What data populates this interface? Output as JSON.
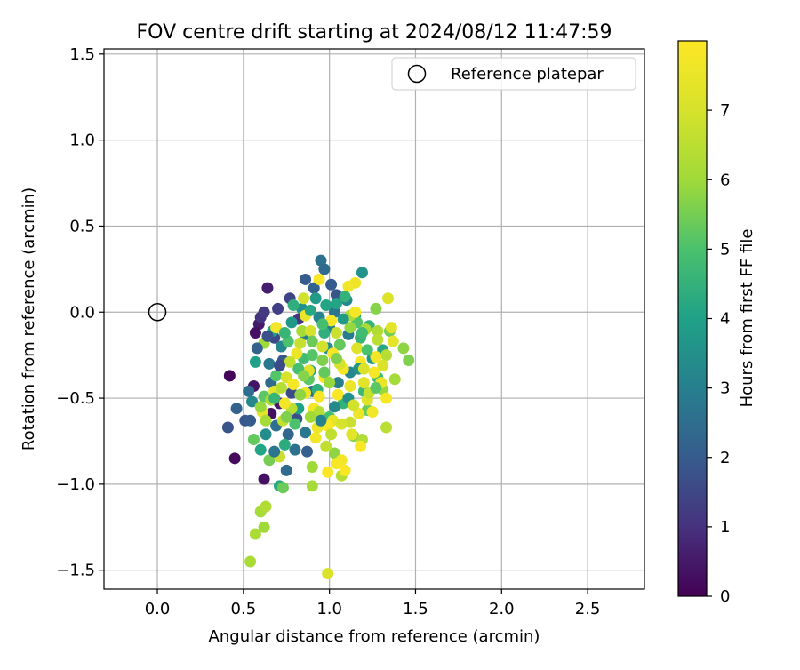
{
  "chart_data": {
    "type": "scatter",
    "title": "FOV centre drift starting at 2024/08/12 11:47:59",
    "xlabel": "Angular distance from reference (arcmin)",
    "ylabel": "Rotation from reference (arcmin)",
    "xlim": [
      -0.31,
      2.83
    ],
    "ylim": [
      -1.61,
      1.53
    ],
    "xticks": [
      0.0,
      0.5,
      1.0,
      1.5,
      2.0,
      2.5
    ],
    "xtick_labels": [
      "0.0",
      "0.5",
      "1.0",
      "1.5",
      "2.0",
      "2.5"
    ],
    "yticks": [
      -1.5,
      -1.0,
      -0.5,
      0.0,
      0.5,
      1.0,
      1.5
    ],
    "ytick_labels": [
      "−1.5",
      "−1.0",
      "−0.5",
      "0.0",
      "0.5",
      "1.0",
      "1.5"
    ],
    "grid": true,
    "legend": {
      "position": "top-right",
      "entries": [
        "Reference platepar"
      ]
    },
    "reference_point": {
      "x": 0.0,
      "y": 0.0
    },
    "colorbar": {
      "label": "Hours from first FF file",
      "range": [
        0,
        8
      ],
      "ticks": [
        0,
        1,
        2,
        3,
        4,
        5,
        6,
        7
      ],
      "tick_labels": [
        "0",
        "1",
        "2",
        "3",
        "4",
        "5",
        "6",
        "7"
      ],
      "colormap": "viridis"
    },
    "series": [
      {
        "points": [
          [
            0.42,
            -0.37,
            0.1
          ],
          [
            0.45,
            -0.85,
            0.2
          ],
          [
            0.62,
            -0.97,
            0.3
          ],
          [
            0.59,
            -0.07,
            0.5
          ],
          [
            0.57,
            -0.12,
            0.3
          ],
          [
            0.64,
            0.14,
            0.6
          ],
          [
            0.56,
            -0.43,
            0.4
          ],
          [
            0.66,
            -0.59,
            0.3
          ],
          [
            0.71,
            -0.53,
            0.5
          ],
          [
            0.6,
            -0.03,
            1.0
          ],
          [
            0.62,
            0.0,
            1.2
          ],
          [
            0.41,
            -0.67,
            1.8
          ],
          [
            0.46,
            -0.56,
            2.2
          ],
          [
            0.51,
            -0.63,
            1.9
          ],
          [
            0.68,
            -0.15,
            1.5
          ],
          [
            0.7,
            0.02,
            1.3
          ],
          [
            0.77,
            0.08,
            1.4
          ],
          [
            0.82,
            -0.04,
            1.1
          ],
          [
            0.86,
            0.19,
            2.0
          ],
          [
            0.91,
            0.14,
            2.2
          ],
          [
            0.95,
            0.3,
            2.6
          ],
          [
            0.97,
            0.25,
            2.4
          ],
          [
            1.01,
            0.16,
            2.0
          ],
          [
            1.04,
            0.1,
            1.8
          ],
          [
            0.73,
            -0.28,
            1.9
          ],
          [
            0.66,
            -0.41,
            2.4
          ],
          [
            0.78,
            -0.47,
            1.6
          ],
          [
            0.81,
            -0.62,
            1.7
          ],
          [
            0.87,
            -0.81,
            2.1
          ],
          [
            0.76,
            -0.71,
            2.3
          ],
          [
            0.69,
            -0.66,
            2.6
          ],
          [
            0.9,
            -0.46,
            2.5
          ],
          [
            1.03,
            0.0,
            2.7
          ],
          [
            1.11,
            -0.13,
            2.9
          ],
          [
            1.0,
            -0.09,
            3.0
          ],
          [
            0.94,
            -0.03,
            3.1
          ],
          [
            0.72,
            -0.2,
            3.2
          ],
          [
            0.65,
            -0.3,
            2.8
          ],
          [
            0.55,
            -0.52,
            3.3
          ],
          [
            0.63,
            -0.71,
            3.4
          ],
          [
            0.84,
            0.02,
            3.5
          ],
          [
            1.1,
            0.07,
            3.3
          ],
          [
            1.19,
            0.23,
            3.6
          ],
          [
            1.12,
            -0.35,
            3.2
          ],
          [
            1.25,
            -0.27,
            3.7
          ],
          [
            1.05,
            -0.41,
            3.0
          ],
          [
            0.99,
            -0.21,
            3.4
          ],
          [
            0.86,
            -0.13,
            2.9
          ],
          [
            0.78,
            -0.06,
            3.7
          ],
          [
            0.92,
            0.08,
            3.8
          ],
          [
            0.67,
            -0.11,
            3.9
          ],
          [
            0.57,
            -0.29,
            4.0
          ],
          [
            0.6,
            -0.8,
            4.1
          ],
          [
            0.71,
            -1.01,
            4.2
          ],
          [
            0.74,
            -0.77,
            4.3
          ],
          [
            0.82,
            -0.56,
            4.0
          ],
          [
            0.89,
            -0.34,
            3.9
          ],
          [
            0.97,
            -0.12,
            4.4
          ],
          [
            1.04,
            0.05,
            4.1
          ],
          [
            1.15,
            -0.02,
            4.3
          ],
          [
            1.18,
            -0.15,
            4.6
          ],
          [
            1.23,
            -0.08,
            4.5
          ],
          [
            1.31,
            -0.22,
            4.2
          ],
          [
            1.28,
            -0.38,
            4.8
          ],
          [
            1.2,
            -0.46,
            4.7
          ],
          [
            1.08,
            -0.53,
            4.5
          ],
          [
            1.0,
            -0.61,
            4.9
          ],
          [
            0.93,
            -0.45,
            4.4
          ],
          [
            0.85,
            -0.27,
            4.8
          ],
          [
            0.76,
            -0.17,
            5.0
          ],
          [
            0.69,
            -0.37,
            5.1
          ],
          [
            0.62,
            -0.49,
            5.2
          ],
          [
            0.56,
            -0.74,
            5.3
          ],
          [
            0.65,
            -0.86,
            5.5
          ],
          [
            0.73,
            -1.02,
            5.4
          ],
          [
            0.8,
            -0.65,
            5.0
          ],
          [
            0.88,
            -0.39,
            5.2
          ],
          [
            0.96,
            -0.28,
            5.6
          ],
          [
            1.06,
            -0.19,
            5.3
          ],
          [
            1.16,
            -0.06,
            5.1
          ],
          [
            1.27,
            0.02,
            5.7
          ],
          [
            1.35,
            -0.11,
            5.5
          ],
          [
            1.43,
            -0.21,
            5.8
          ],
          [
            1.46,
            -0.28,
            5.6
          ],
          [
            1.31,
            -0.45,
            5.9
          ],
          [
            1.22,
            -0.57,
            5.4
          ],
          [
            1.14,
            -0.72,
            5.7
          ],
          [
            1.03,
            -0.82,
            5.8
          ],
          [
            0.9,
            -0.9,
            6.0
          ],
          [
            0.9,
            -1.01,
            6.1
          ],
          [
            0.57,
            -1.29,
            6.2
          ],
          [
            0.6,
            -1.16,
            6.1
          ],
          [
            0.63,
            -1.13,
            6.3
          ],
          [
            0.62,
            -1.25,
            6.0
          ],
          [
            0.54,
            -1.45,
            6.2
          ],
          [
            0.62,
            -0.18,
            6.0
          ],
          [
            0.84,
            -0.11,
            6.1
          ],
          [
            1.12,
            -0.02,
            6.2
          ],
          [
            1.28,
            -0.11,
            6.3
          ],
          [
            1.33,
            -0.25,
            6.4
          ],
          [
            1.38,
            -0.39,
            6.1
          ],
          [
            1.33,
            -0.67,
            6.5
          ],
          [
            1.19,
            -0.74,
            6.3
          ],
          [
            1.07,
            -0.95,
            6.4
          ],
          [
            0.98,
            -0.78,
            6.6
          ],
          [
            0.78,
            -0.56,
            6.5
          ],
          [
            0.73,
            -0.63,
            6.7
          ],
          [
            0.71,
            -0.84,
            6.8
          ],
          [
            0.85,
            0.08,
            6.9
          ],
          [
            1.04,
            -0.12,
            6.8
          ],
          [
            0.99,
            -1.52,
            7.1
          ],
          [
            1.34,
            0.08,
            7.2
          ],
          [
            1.36,
            -0.09,
            7.3
          ],
          [
            1.37,
            -0.17,
            7.4
          ],
          [
            1.31,
            -0.31,
            7.1
          ],
          [
            1.3,
            -0.41,
            7.5
          ],
          [
            1.22,
            -0.51,
            7.2
          ],
          [
            1.17,
            -0.59,
            7.6
          ],
          [
            1.13,
            -0.71,
            7.3
          ],
          [
            1.07,
            -0.86,
            7.7
          ],
          [
            1.02,
            -0.63,
            7.4
          ],
          [
            0.94,
            -0.49,
            7.8
          ],
          [
            0.88,
            -0.34,
            7.2
          ],
          [
            0.81,
            -0.24,
            7.6
          ],
          [
            0.75,
            -0.38,
            7.1
          ],
          [
            0.68,
            -0.46,
            7.4
          ],
          [
            0.61,
            -0.58,
            7.3
          ],
          [
            0.69,
            -0.09,
            7.7
          ],
          [
            0.86,
            -0.02,
            7.5
          ],
          [
            1.01,
            -0.05,
            7.9
          ],
          [
            1.15,
            0.0,
            7.8
          ],
          [
            1.15,
            0.17,
            7.6
          ],
          [
            1.11,
            0.15,
            7.7
          ],
          [
            1.02,
            -0.24,
            7.9
          ],
          [
            1.08,
            -0.33,
            7.8
          ],
          [
            1.18,
            -0.29,
            7.9
          ],
          [
            1.26,
            -0.35,
            7.8
          ],
          [
            1.33,
            -0.5,
            7.9
          ],
          [
            1.25,
            -0.58,
            7.7
          ],
          [
            1.18,
            -0.78,
            7.9
          ],
          [
            1.09,
            -0.92,
            7.9
          ],
          [
            1.04,
            -0.88,
            7.8
          ],
          [
            0.99,
            -0.93,
            7.9
          ],
          [
            0.93,
            -0.67,
            7.6
          ],
          [
            0.91,
            -0.56,
            7.8
          ],
          [
            0.97,
            -0.38,
            7.9
          ],
          [
            0.94,
            0.19,
            7.9
          ],
          [
            0.99,
            -0.66,
            7.9
          ],
          [
            0.92,
            -0.73,
            7.7
          ],
          [
            0.79,
            -0.42,
            7.8
          ],
          [
            0.86,
            -0.47,
            7.6
          ],
          [
            0.74,
            -0.53,
            7.7
          ],
          [
            1.05,
            -0.48,
            7.9
          ],
          [
            1.12,
            -0.43,
            7.5
          ],
          [
            1.2,
            -0.41,
            7.3
          ],
          [
            1.27,
            -0.26,
            7.7
          ],
          [
            1.16,
            -0.21,
            7.2
          ],
          [
            1.06,
            -0.3,
            7.0
          ],
          [
            0.96,
            -0.2,
            6.9
          ],
          [
            0.89,
            -0.11,
            7.0
          ],
          [
            0.83,
            -0.18,
            6.7
          ],
          [
            0.77,
            -0.29,
            6.6
          ],
          [
            0.72,
            -0.44,
            6.4
          ],
          [
            0.66,
            -0.51,
            6.2
          ],
          [
            0.63,
            -0.63,
            6.1
          ],
          [
            0.6,
            -0.55,
            5.9
          ],
          [
            0.94,
            -0.58,
            6.4
          ],
          [
            1.01,
            -0.71,
            6.6
          ],
          [
            1.12,
            -0.64,
            6.8
          ],
          [
            1.23,
            -0.47,
            6.7
          ],
          [
            1.28,
            -0.16,
            6.5
          ],
          [
            1.21,
            -0.1,
            6.2
          ],
          [
            1.12,
            -0.09,
            5.9
          ],
          [
            1.04,
            -0.27,
            5.6
          ],
          [
            0.97,
            -0.35,
            5.3
          ],
          [
            0.9,
            -0.25,
            5.1
          ],
          [
            0.82,
            -0.33,
            4.9
          ],
          [
            0.74,
            -0.12,
            4.6
          ],
          [
            0.79,
            0.04,
            4.4
          ],
          [
            0.89,
            0.01,
            4.2
          ],
          [
            0.98,
            0.04,
            4.1
          ],
          [
            1.08,
            -0.04,
            3.8
          ],
          [
            1.17,
            -0.33,
            3.6
          ],
          [
            1.11,
            -0.5,
            3.5
          ],
          [
            1.03,
            -0.55,
            3.3
          ],
          [
            0.95,
            -0.63,
            3.1
          ],
          [
            0.86,
            -0.7,
            2.8
          ],
          [
            0.8,
            -0.8,
            2.6
          ],
          [
            0.75,
            -0.92,
            2.4
          ],
          [
            0.68,
            -0.81,
            2.7
          ],
          [
            0.54,
            -0.63,
            2.0
          ],
          [
            0.53,
            -0.46,
            2.5
          ],
          [
            0.58,
            -0.21,
            2.2
          ],
          [
            0.64,
            -0.14,
            1.7
          ],
          [
            0.71,
            -0.31,
            1.6
          ],
          [
            0.68,
            -0.5,
            4.6
          ],
          [
            0.75,
            -0.61,
            5.6
          ],
          [
            0.83,
            -0.48,
            5.8
          ],
          [
            0.89,
            -0.61,
            6.0
          ],
          [
            1.0,
            -0.41,
            5.9
          ],
          [
            1.07,
            -0.65,
            7.0
          ],
          [
            1.14,
            -0.54,
            6.9
          ],
          [
            1.2,
            -0.33,
            7.1
          ],
          [
            1.27,
            -0.44,
            5.2
          ],
          [
            1.22,
            -0.22,
            5.0
          ],
          [
            1.19,
            -0.12,
            4.8
          ],
          [
            1.09,
            0.09,
            4.5
          ],
          [
            0.96,
            -0.07,
            4.9
          ],
          [
            0.9,
            -0.17,
            5.4
          ],
          [
            0.85,
            -0.37,
            5.7
          ]
        ]
      }
    ]
  }
}
